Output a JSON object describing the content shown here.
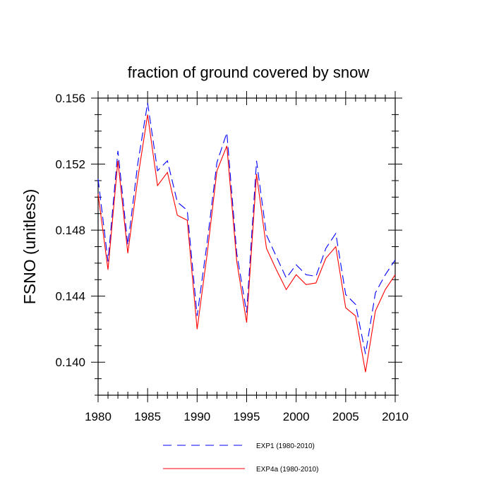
{
  "chart_data": {
    "type": "line",
    "title": "fraction of ground covered by snow",
    "xlabel": "",
    "ylabel": "FSNO  (unitless)",
    "xlim": [
      1980,
      2010
    ],
    "ylim": [
      0.138,
      0.156
    ],
    "xticks": [
      1980,
      1985,
      1990,
      1995,
      2000,
      2005,
      2010
    ],
    "xtick_labels": [
      "1980",
      "1985",
      "1990",
      "1995",
      "2000",
      "2005",
      "2010"
    ],
    "yticks": [
      0.14,
      0.144,
      0.148,
      0.152,
      0.156
    ],
    "ytick_labels": [
      "0.140",
      "0.144",
      "0.148",
      "0.152",
      "0.156"
    ],
    "grid": false,
    "legend_position": "bottom-center",
    "x": [
      1980,
      1981,
      1982,
      1983,
      1984,
      1985,
      1986,
      1987,
      1988,
      1989,
      1990,
      1991,
      1992,
      1993,
      1994,
      1995,
      1996,
      1997,
      1998,
      1999,
      2000,
      2001,
      2002,
      2003,
      2004,
      2005,
      2006,
      2007,
      2008,
      2009,
      2010
    ],
    "series": [
      {
        "name": "EXP1 (1980-2010)",
        "color": "#0000ff",
        "style": "dashed",
        "values": [
          0.1511,
          0.1461,
          0.1528,
          0.1471,
          0.152,
          0.1557,
          0.1516,
          0.1522,
          0.1497,
          0.1492,
          0.1428,
          0.1472,
          0.1521,
          0.1539,
          0.1466,
          0.143,
          0.1522,
          0.1477,
          0.1464,
          0.1451,
          0.1459,
          0.1453,
          0.1452,
          0.1469,
          0.1478,
          0.1441,
          0.1435,
          0.1405,
          0.1442,
          0.1453,
          0.1462
        ]
      },
      {
        "name": "EXP4a (1980-2010)",
        "color": "#ff0000",
        "style": "solid",
        "values": [
          0.1502,
          0.1456,
          0.1522,
          0.1466,
          0.1511,
          0.155,
          0.1507,
          0.1515,
          0.1489,
          0.1486,
          0.142,
          0.1465,
          0.1516,
          0.1531,
          0.1461,
          0.1424,
          0.1514,
          0.1469,
          0.1456,
          0.1444,
          0.1453,
          0.1447,
          0.1448,
          0.1463,
          0.147,
          0.1433,
          0.1428,
          0.1394,
          0.1431,
          0.1444,
          0.1453
        ]
      }
    ]
  }
}
